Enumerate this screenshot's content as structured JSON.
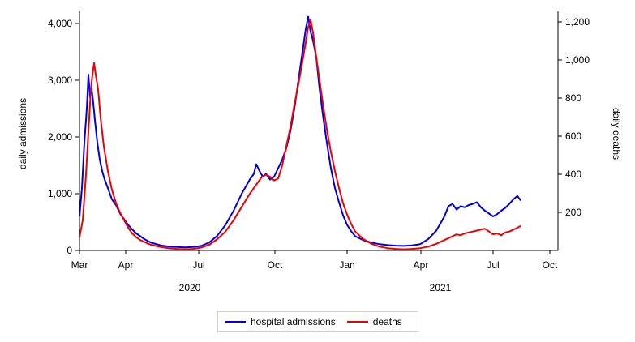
{
  "chart_data": {
    "type": "line",
    "title": "",
    "xlabel": "",
    "ylabel_left": "daily admissions",
    "ylabel_right": "daily deaths",
    "ylim_left": [
      0,
      4200
    ],
    "ylim_right": [
      0,
      1260
    ],
    "yticks_left": [
      "0",
      "1,000",
      "2,000",
      "3,000",
      "4,000"
    ],
    "yticks_right": [
      "200",
      "400",
      "600",
      "800",
      "1,000",
      "1,200"
    ],
    "xticks": [
      "Mar",
      "Apr",
      "Jul",
      "Oct",
      "Jan",
      "Apr",
      "Jul",
      "Oct"
    ],
    "years": [
      "2020",
      "2021"
    ],
    "x_unit": "days since 2020-03-01",
    "series": [
      {
        "name": "hospital admissions",
        "axis": "left",
        "color": "#0000dd",
        "points": [
          [
            0,
            600
          ],
          [
            3,
            1100
          ],
          [
            6,
            1900
          ],
          [
            9,
            2500
          ],
          [
            11,
            3100
          ],
          [
            13,
            2700
          ],
          [
            15,
            2850
          ],
          [
            17,
            2600
          ],
          [
            19,
            2300
          ],
          [
            22,
            1900
          ],
          [
            25,
            1600
          ],
          [
            28,
            1400
          ],
          [
            31,
            1250
          ],
          [
            35,
            1100
          ],
          [
            40,
            900
          ],
          [
            45,
            800
          ],
          [
            50,
            650
          ],
          [
            55,
            550
          ],
          [
            60,
            450
          ],
          [
            65,
            370
          ],
          [
            70,
            300
          ],
          [
            75,
            250
          ],
          [
            80,
            200
          ],
          [
            85,
            160
          ],
          [
            90,
            130
          ],
          [
            100,
            90
          ],
          [
            110,
            70
          ],
          [
            120,
            60
          ],
          [
            130,
            55
          ],
          [
            140,
            60
          ],
          [
            150,
            80
          ],
          [
            160,
            140
          ],
          [
            170,
            260
          ],
          [
            180,
            450
          ],
          [
            190,
            700
          ],
          [
            200,
            1000
          ],
          [
            210,
            1250
          ],
          [
            215,
            1350
          ],
          [
            218,
            1520
          ],
          [
            222,
            1400
          ],
          [
            226,
            1300
          ],
          [
            230,
            1350
          ],
          [
            235,
            1250
          ],
          [
            240,
            1300
          ],
          [
            245,
            1450
          ],
          [
            250,
            1600
          ],
          [
            255,
            1800
          ],
          [
            260,
            2100
          ],
          [
            265,
            2500
          ],
          [
            270,
            3000
          ],
          [
            275,
            3500
          ],
          [
            279,
            3900
          ],
          [
            282,
            4120
          ],
          [
            285,
            3850
          ],
          [
            288,
            3700
          ],
          [
            292,
            3400
          ],
          [
            296,
            2850
          ],
          [
            300,
            2400
          ],
          [
            305,
            1900
          ],
          [
            310,
            1450
          ],
          [
            315,
            1100
          ],
          [
            320,
            850
          ],
          [
            325,
            620
          ],
          [
            330,
            450
          ],
          [
            335,
            340
          ],
          [
            340,
            250
          ],
          [
            350,
            180
          ],
          [
            360,
            140
          ],
          [
            370,
            110
          ],
          [
            380,
            95
          ],
          [
            390,
            85
          ],
          [
            400,
            80
          ],
          [
            410,
            90
          ],
          [
            420,
            110
          ],
          [
            430,
            200
          ],
          [
            440,
            350
          ],
          [
            450,
            600
          ],
          [
            455,
            780
          ],
          [
            460,
            820
          ],
          [
            465,
            720
          ],
          [
            470,
            780
          ],
          [
            475,
            760
          ],
          [
            480,
            800
          ],
          [
            485,
            820
          ],
          [
            490,
            850
          ],
          [
            495,
            760
          ],
          [
            500,
            700
          ],
          [
            505,
            650
          ],
          [
            510,
            600
          ],
          [
            515,
            640
          ],
          [
            520,
            700
          ],
          [
            525,
            750
          ],
          [
            530,
            820
          ],
          [
            535,
            900
          ],
          [
            540,
            960
          ],
          [
            544,
            880
          ]
        ]
      },
      {
        "name": "deaths",
        "axis": "right",
        "color": "#ee0000",
        "points": [
          [
            0,
            70
          ],
          [
            4,
            160
          ],
          [
            8,
            400
          ],
          [
            12,
            700
          ],
          [
            14,
            850
          ],
          [
            16,
            930
          ],
          [
            18,
            990
          ],
          [
            20,
            930
          ],
          [
            23,
            850
          ],
          [
            26,
            700
          ],
          [
            30,
            550
          ],
          [
            35,
            420
          ],
          [
            40,
            320
          ],
          [
            45,
            250
          ],
          [
            50,
            200
          ],
          [
            55,
            160
          ],
          [
            60,
            120
          ],
          [
            65,
            90
          ],
          [
            70,
            70
          ],
          [
            75,
            55
          ],
          [
            80,
            45
          ],
          [
            85,
            35
          ],
          [
            90,
            28
          ],
          [
            100,
            18
          ],
          [
            110,
            12
          ],
          [
            120,
            8
          ],
          [
            130,
            6
          ],
          [
            140,
            8
          ],
          [
            150,
            15
          ],
          [
            160,
            30
          ],
          [
            170,
            60
          ],
          [
            180,
            100
          ],
          [
            190,
            160
          ],
          [
            200,
            230
          ],
          [
            210,
            300
          ],
          [
            215,
            330
          ],
          [
            220,
            360
          ],
          [
            225,
            390
          ],
          [
            230,
            400
          ],
          [
            235,
            390
          ],
          [
            240,
            370
          ],
          [
            245,
            380
          ],
          [
            250,
            450
          ],
          [
            255,
            550
          ],
          [
            260,
            650
          ],
          [
            265,
            770
          ],
          [
            270,
            880
          ],
          [
            275,
            1000
          ],
          [
            279,
            1100
          ],
          [
            282,
            1180
          ],
          [
            285,
            1220
          ],
          [
            288,
            1150
          ],
          [
            292,
            1020
          ],
          [
            296,
            900
          ],
          [
            300,
            780
          ],
          [
            305,
            640
          ],
          [
            310,
            520
          ],
          [
            315,
            420
          ],
          [
            320,
            330
          ],
          [
            325,
            250
          ],
          [
            330,
            190
          ],
          [
            335,
            140
          ],
          [
            340,
            100
          ],
          [
            350,
            60
          ],
          [
            360,
            35
          ],
          [
            370,
            20
          ],
          [
            380,
            12
          ],
          [
            390,
            8
          ],
          [
            400,
            6
          ],
          [
            410,
            8
          ],
          [
            420,
            12
          ],
          [
            430,
            20
          ],
          [
            440,
            35
          ],
          [
            450,
            55
          ],
          [
            460,
            75
          ],
          [
            465,
            85
          ],
          [
            470,
            80
          ],
          [
            475,
            90
          ],
          [
            480,
            95
          ],
          [
            485,
            100
          ],
          [
            490,
            105
          ],
          [
            495,
            110
          ],
          [
            500,
            115
          ],
          [
            505,
            100
          ],
          [
            510,
            85
          ],
          [
            515,
            90
          ],
          [
            520,
            80
          ],
          [
            525,
            95
          ],
          [
            530,
            100
          ],
          [
            535,
            110
          ],
          [
            540,
            120
          ],
          [
            544,
            130
          ]
        ]
      }
    ]
  }
}
